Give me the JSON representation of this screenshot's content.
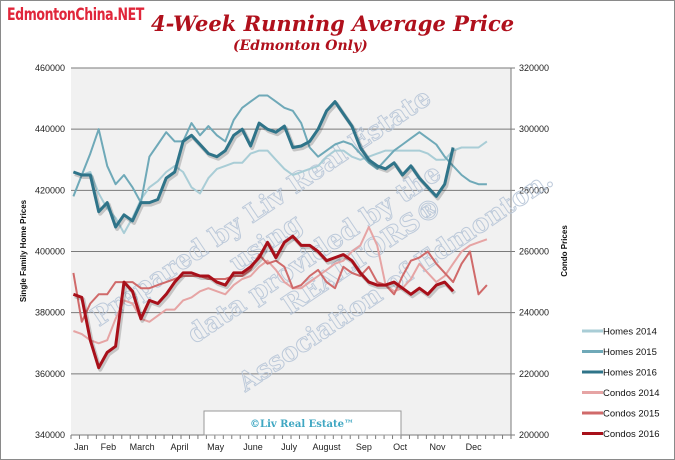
{
  "brand": "EdmontonChina.NET",
  "title": "4-Week Running Average Price",
  "subtitle": "(Edmonton Only)",
  "copyright": "©Liv Real Estate™",
  "watermark": [
    "Prepared by Liv Real Estate",
    "using",
    "data provided by the",
    "REALTORS®",
    "Association of Edmonton."
  ],
  "chart_data": {
    "type": "line",
    "title": "4-Week Running Average Price",
    "subtitle": "(Edmonton Only)",
    "ylabel": "Single Family Home Prices",
    "y2label": "Condo Prices",
    "ylim": [
      340000,
      460000
    ],
    "y2lim": [
      200000,
      320000
    ],
    "yticks": [
      "340000",
      "360000",
      "380000",
      "400000",
      "420000",
      "440000",
      "460000"
    ],
    "y2ticks": [
      "200000",
      "220000",
      "240000",
      "260000",
      "280000",
      "300000",
      "320000"
    ],
    "month_labels": [
      "Jan",
      "Feb",
      "March",
      "April",
      "May",
      "June",
      "July",
      "August",
      "Sep",
      "Oct",
      "Nov",
      "Dec"
    ],
    "grid": true,
    "legend_position": "right",
    "x": [
      "Jan 3",
      "Jan 10",
      "Jan 17",
      "Jan 24",
      "Jan 31",
      "Feb 7",
      "Feb 14",
      "Feb 21",
      "Feb 28",
      "Mar 7",
      "Mar 14",
      "Mar 21",
      "Mar 28",
      "Apr 4",
      "Apr 11",
      "Apr 18",
      "Apr 25",
      "May 2",
      "May 9",
      "May 16",
      "May 23",
      "May 30",
      "Jun 6",
      "Jun 13",
      "Jun 20",
      "Jun 27",
      "Jul 4",
      "Jul 11",
      "Jul 18",
      "Jul 25",
      "Aug 1",
      "Aug 8",
      "Aug 15",
      "Aug 22",
      "Aug 29",
      "Sep 5",
      "Sep 12",
      "Sep 19",
      "Sep 26",
      "Oct 3",
      "Oct 10",
      "Oct 17",
      "Oct 24",
      "Oct 31",
      "Nov 7",
      "Nov 14",
      "Nov 21",
      "Nov 28",
      "Dec 5",
      "Dec 12"
    ],
    "series": [
      {
        "name": "Homes 2014",
        "axis": "left",
        "color": "#a9cdd6",
        "width": 2,
        "values": [
          426000,
          425000,
          426000,
          419000,
          414000,
          411000,
          406000,
          411000,
          417000,
          421000,
          423000,
          426000,
          428000,
          426000,
          421000,
          419000,
          424000,
          427000,
          428000,
          429000,
          429000,
          432000,
          433000,
          433000,
          430000,
          427000,
          425000,
          426000,
          427000,
          428000,
          431000,
          433000,
          433000,
          431000,
          430000,
          431000,
          432000,
          433000,
          433000,
          433000,
          433000,
          433000,
          432000,
          430000,
          430000,
          433000,
          434000,
          434000,
          434000,
          436000
        ]
      },
      {
        "name": "Homes 2015",
        "axis": "left",
        "color": "#6fa9b8",
        "width": 2,
        "values": [
          418000,
          425000,
          432000,
          440000,
          428000,
          422000,
          425000,
          421000,
          416000,
          431000,
          435000,
          439000,
          436000,
          436000,
          442000,
          438000,
          441000,
          438000,
          436000,
          443000,
          447000,
          449000,
          451000,
          451000,
          449000,
          447000,
          446000,
          442000,
          434000,
          431000,
          433000,
          435000,
          436000,
          435000,
          432000,
          429000,
          427000,
          430000,
          433000,
          435000,
          437000,
          439000,
          437000,
          435000,
          431000,
          428000,
          425000,
          423000,
          422000,
          422000
        ]
      },
      {
        "name": "Homes 2016",
        "axis": "left",
        "color": "#2f7489",
        "width": 3,
        "values": [
          426000,
          425000,
          425000,
          413000,
          416000,
          408000,
          412000,
          410000,
          416000,
          416000,
          417000,
          424000,
          426000,
          436000,
          438000,
          435000,
          432000,
          431000,
          433000,
          438000,
          440000,
          434500,
          442000,
          440000,
          439000,
          441000,
          434000,
          434500,
          436000,
          440000,
          446000,
          449000,
          445000,
          441000,
          434000,
          430000,
          428000,
          427000,
          429000,
          425000,
          428000,
          424000,
          421000,
          418000,
          422000,
          434000,
          null,
          null,
          null,
          null
        ]
      },
      {
        "name": "Condos 2014",
        "axis": "right",
        "color": "#e6a4a4",
        "width": 2,
        "values": [
          234000,
          233000,
          231000,
          230000,
          231000,
          238000,
          244000,
          243000,
          238000,
          237000,
          239000,
          241000,
          241000,
          244000,
          245000,
          247000,
          248000,
          247000,
          246000,
          249000,
          251000,
          252000,
          255000,
          257000,
          254000,
          250000,
          248000,
          248000,
          250000,
          252000,
          254000,
          256000,
          257000,
          260000,
          262000,
          268000,
          262000,
          249000,
          247000,
          248000,
          251000,
          256000,
          253000,
          250000,
          252000,
          256000,
          260000,
          262000,
          263000,
          264000
        ]
      },
      {
        "name": "Condos 2015",
        "axis": "right",
        "color": "#d06a6a",
        "width": 2,
        "values": [
          253000,
          237000,
          243000,
          246000,
          246000,
          250000,
          250000,
          250000,
          248000,
          248000,
          249000,
          250000,
          251000,
          252000,
          252000,
          252000,
          251000,
          251000,
          251000,
          252000,
          252000,
          254000,
          259000,
          256000,
          257000,
          255000,
          248000,
          249000,
          252000,
          254000,
          250000,
          248000,
          255000,
          253000,
          252000,
          255000,
          250000,
          249000,
          246000,
          252000,
          257000,
          258000,
          260000,
          256000,
          253000,
          250000,
          256000,
          260000,
          246000,
          249000
        ]
      },
      {
        "name": "Condos 2016",
        "axis": "right",
        "color": "#a8101a",
        "width": 3,
        "values": [
          246000,
          245000,
          231000,
          222000,
          227000,
          229000,
          250000,
          247000,
          238000,
          244000,
          243000,
          246000,
          250000,
          253000,
          253000,
          252000,
          252000,
          250000,
          249000,
          253000,
          253000,
          255000,
          258000,
          263000,
          258000,
          263000,
          265000,
          262000,
          262000,
          260000,
          257000,
          258000,
          259000,
          257000,
          253000,
          250000,
          249000,
          249000,
          250000,
          248000,
          246000,
          248000,
          246000,
          249000,
          250000,
          247000,
          null,
          null,
          null,
          null
        ]
      }
    ]
  }
}
